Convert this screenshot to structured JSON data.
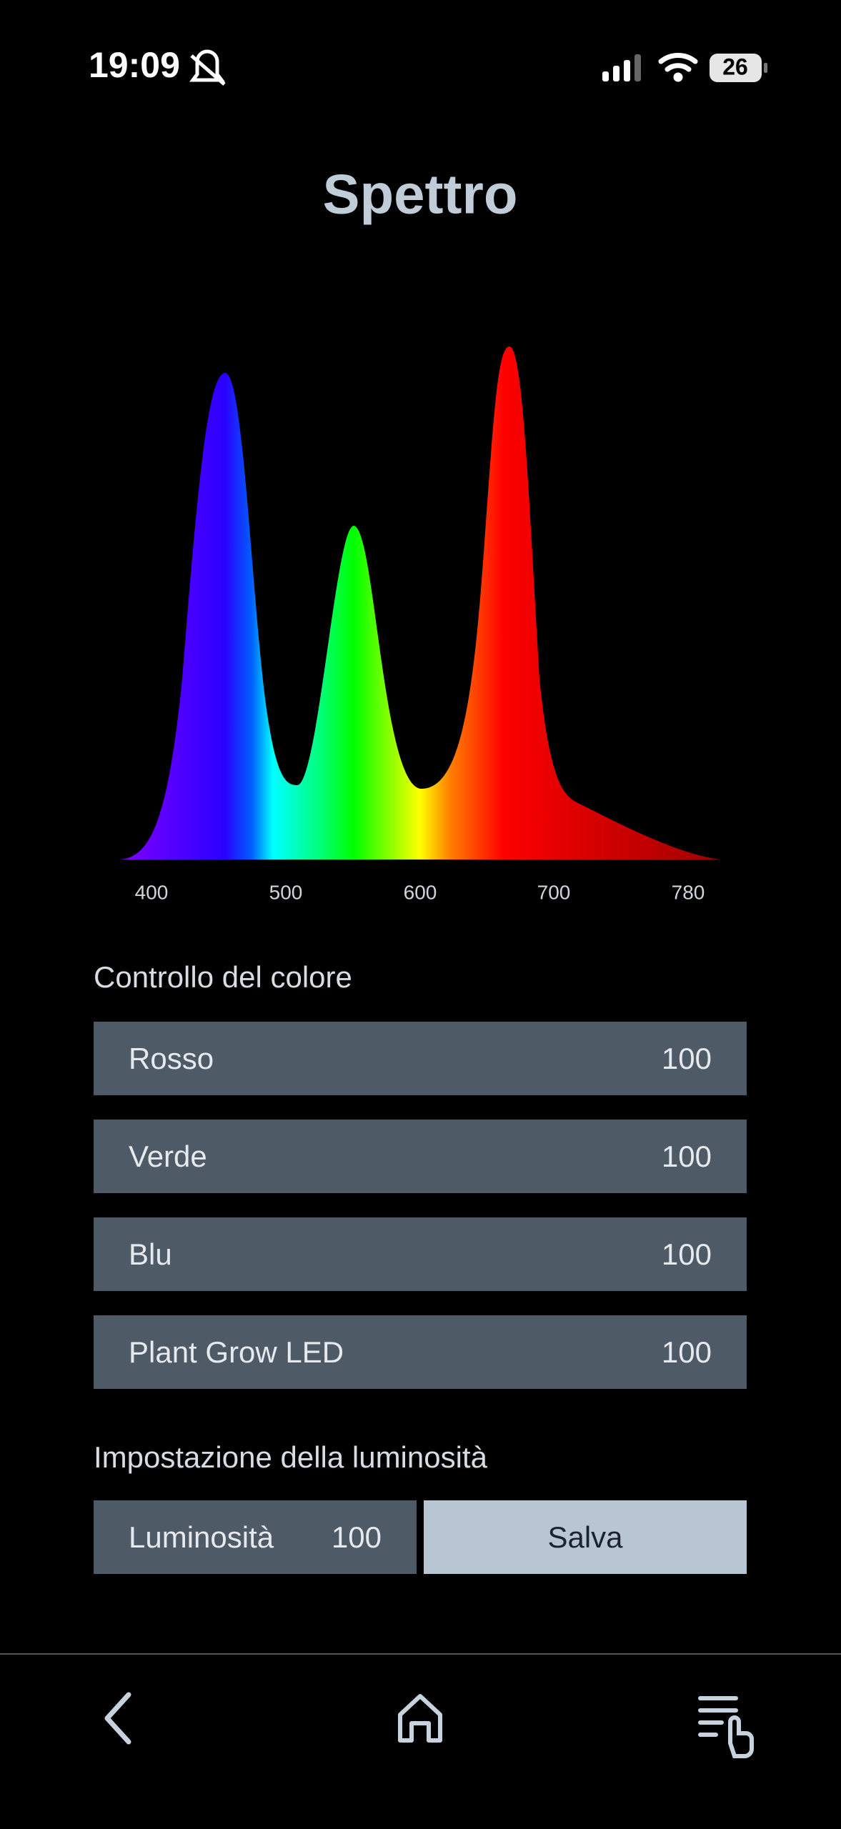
{
  "status": {
    "time": "19:09",
    "battery": "26"
  },
  "title": "Spettro",
  "spectrum": {
    "ticks": [
      400,
      500,
      600,
      700,
      780
    ]
  },
  "color_control": {
    "heading": "Controllo del colore",
    "rows": [
      {
        "label": "Rosso",
        "value": 100
      },
      {
        "label": "Verde",
        "value": 100
      },
      {
        "label": "Blu",
        "value": 100
      },
      {
        "label": "Plant Grow LED",
        "value": 100
      }
    ]
  },
  "brightness": {
    "heading": "Impostazione della luminosità",
    "label": "Luminosità",
    "value": 100,
    "save": "Salva"
  }
}
